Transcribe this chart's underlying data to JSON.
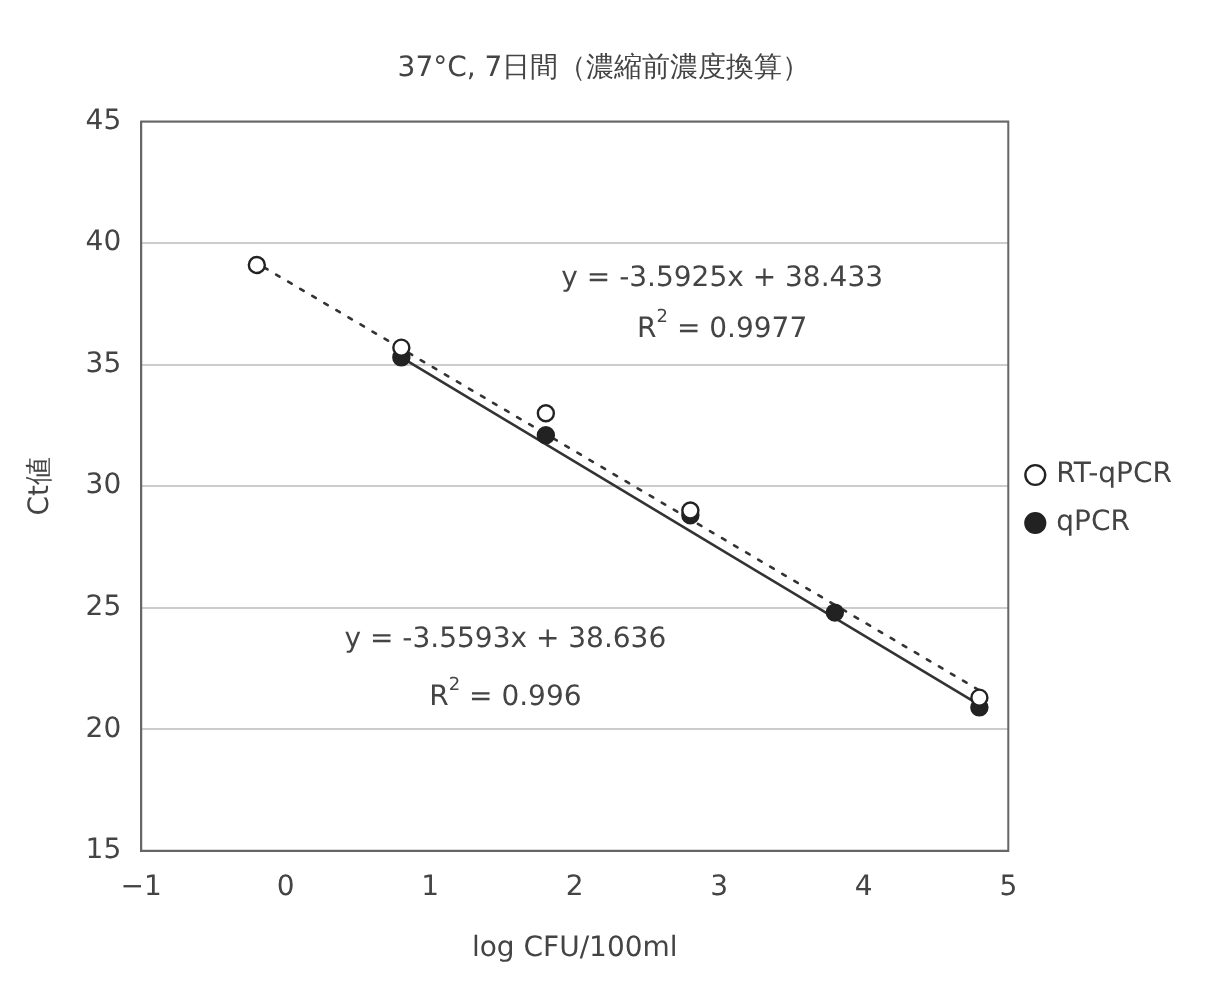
{
  "chart_data": {
    "type": "scatter",
    "title": "37°C, 7日間（濃縮前濃度換算）",
    "xlabel": "log CFU/100ml",
    "ylabel": "Ct値",
    "xlim": [
      -1,
      5
    ],
    "xticks": [
      -1,
      0,
      1,
      2,
      3,
      4,
      5
    ],
    "ylim": [
      15,
      45
    ],
    "yticks": [
      15,
      20,
      25,
      30,
      35,
      40,
      45
    ],
    "grid": "y",
    "legend": "right",
    "series": [
      {
        "name": "qPCR",
        "color": "#222222",
        "marker": "circle",
        "x": [
          0.8,
          1.8,
          2.8,
          3.8,
          4.8
        ],
        "values": [
          35.3,
          32.1,
          28.8,
          24.8,
          20.9
        ]
      },
      {
        "name": "RT-qPCR",
        "color": "#ffffff",
        "marker": "circle",
        "x": [
          -0.2,
          0.8,
          1.8,
          2.8,
          4.8
        ],
        "values": [
          39.1,
          35.7,
          33.0,
          29.0,
          21.3
        ]
      },
      {
        "type": "line",
        "color": "#333333",
        "line_style": "solid",
        "marker": "none",
        "x": [
          0.8,
          4.8
        ],
        "values": [
          35.3,
          21.0
        ]
      },
      {
        "type": "line",
        "color": "#333333",
        "line_style": "dotted",
        "marker": "none",
        "x": [
          -0.15,
          4.8
        ],
        "values": [
          39.0,
          21.6
        ]
      }
    ],
    "annotations": [
      "y = -3.5925x + 38.433",
      "R$^{2}$ = 0.9977",
      "y = -3.5593x + 38.636",
      "R$^{2}$ = 0.996"
    ]
  }
}
